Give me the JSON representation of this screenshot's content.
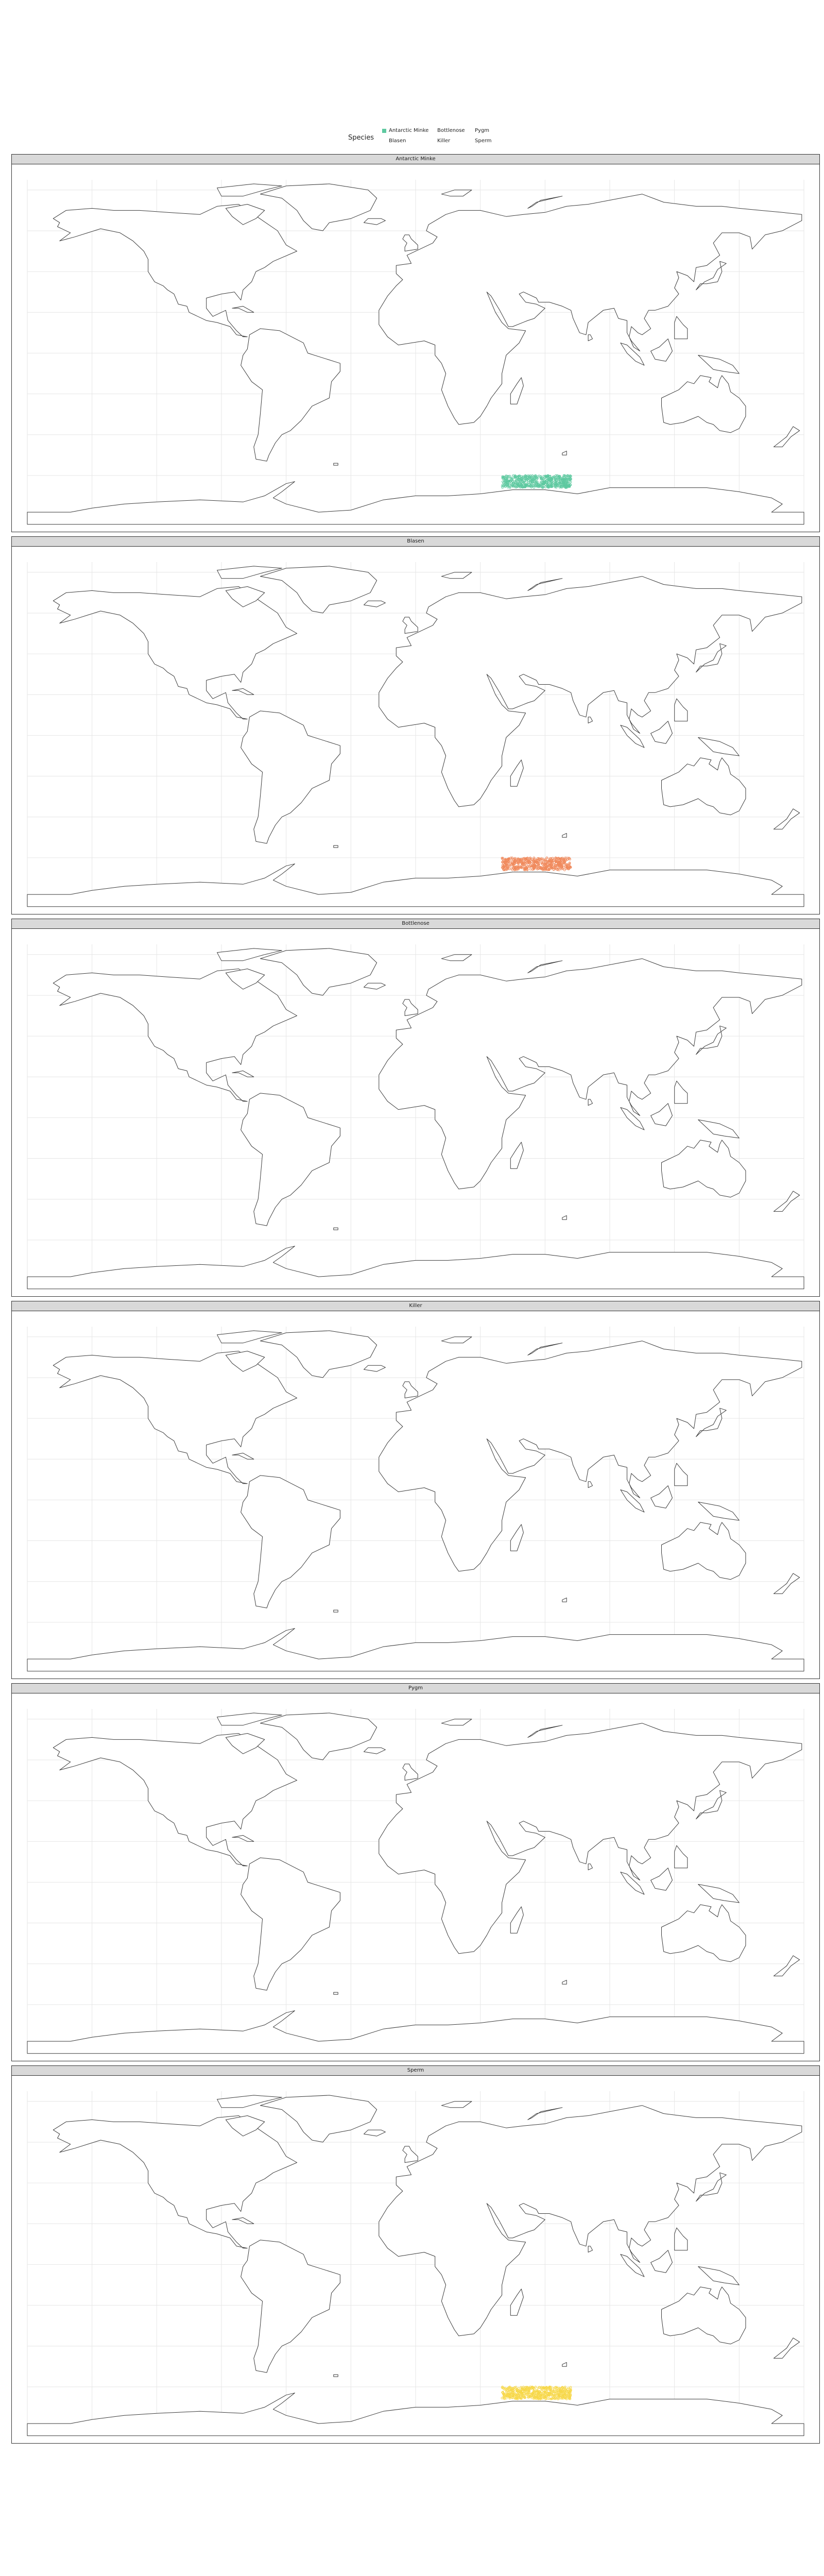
{
  "legend": {
    "title": "Species",
    "items": [
      {
        "label": "Antarctic Minke",
        "color": "#5ec9a0"
      },
      {
        "label": "Bottlenose",
        "color": "#ffffff"
      },
      {
        "label": "Pygm",
        "color": "#ffffff"
      },
      {
        "label": "Blasen",
        "color": "#ffffff"
      },
      {
        "label": "Killer",
        "color": "#ffffff"
      },
      {
        "label": "Sperm",
        "color": "#ffffff"
      }
    ]
  },
  "facets": [
    {
      "title": "Antarctic Minke",
      "color": "#5ec9a0",
      "has_points": true
    },
    {
      "title": "Blasen",
      "color": "#f08a5d",
      "has_points": true
    },
    {
      "title": "Bottlenose",
      "color": "#e27c8e",
      "has_points": false
    },
    {
      "title": "Killer",
      "color": "#9b8ad1",
      "has_points": false
    },
    {
      "title": "Pygm",
      "color": "#7fb3d5",
      "has_points": false
    },
    {
      "title": "Sperm",
      "color": "#f7d84a",
      "has_points": true
    }
  ],
  "map": {
    "lon_range": [
      -180,
      180
    ],
    "lat_range": [
      -80,
      85
    ],
    "grid": true,
    "point_region": {
      "lon": [
        40,
        72
      ],
      "lat": [
        -66,
        -60
      ]
    }
  }
}
